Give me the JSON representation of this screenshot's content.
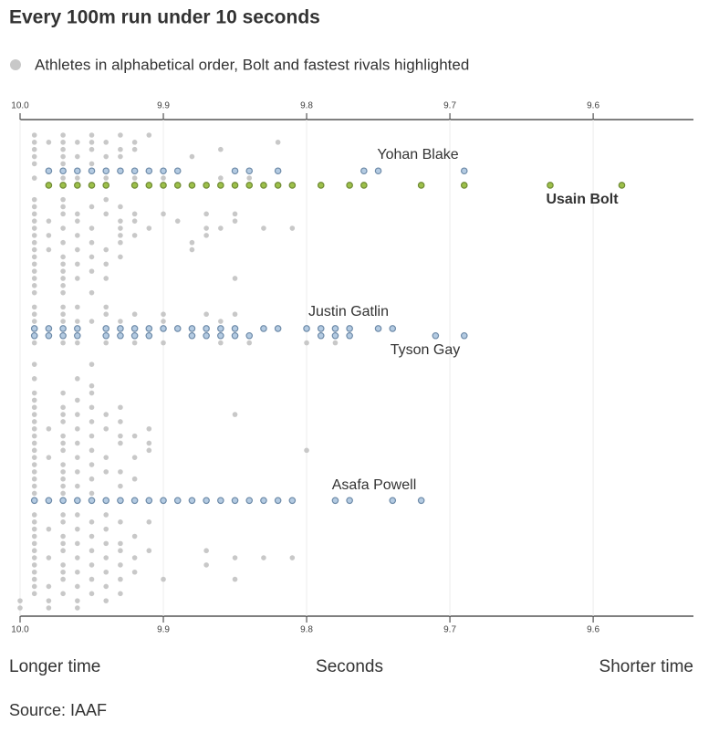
{
  "chart_data": {
    "type": "strip",
    "title": "Every 100m run under 10 seconds",
    "xlabel": "Seconds",
    "left_note": "Longer time",
    "right_note": "Shorter time",
    "source": "Source: IAAF",
    "xlim": [
      10.0,
      9.53
    ],
    "xticks": [
      {
        "value": 10.0,
        "label": "10.0"
      },
      9.9,
      9.8,
      9.7,
      9.6
    ],
    "ylim": [
      0,
      66
    ],
    "grid": true,
    "series": [
      {
        "name": "Athletes in alphabetical order, Bolt and fastest rivals highlighted",
        "color": "#c8c8c8",
        "rows": [
          {
            "row": 0,
            "values": [
              9.99,
              9.97,
              9.95,
              9.93,
              9.91
            ]
          },
          {
            "row": 1,
            "values": [
              9.99,
              9.98,
              9.97,
              9.96,
              9.95,
              9.94,
              9.92,
              9.82
            ]
          },
          {
            "row": 2,
            "values": [
              9.99,
              9.97,
              9.95,
              9.93,
              9.92,
              9.86
            ]
          },
          {
            "row": 3,
            "values": [
              9.99,
              9.97,
              9.96,
              9.94,
              9.93,
              9.88
            ]
          },
          {
            "row": 4,
            "values": [
              9.99,
              9.97,
              9.95
            ]
          },
          {
            "row": 6,
            "values": [
              9.99,
              9.97,
              9.96,
              9.94,
              9.92,
              9.9,
              9.86,
              9.84
            ]
          },
          {
            "row": 9,
            "values": [
              9.99,
              9.97,
              9.94
            ]
          },
          {
            "row": 10,
            "values": [
              9.99,
              9.97,
              9.95,
              9.93
            ]
          },
          {
            "row": 11,
            "values": [
              9.99,
              9.97,
              9.96,
              9.94,
              9.92,
              9.9,
              9.87,
              9.85
            ]
          },
          {
            "row": 12,
            "values": [
              9.99,
              9.98,
              9.96,
              9.93,
              9.92,
              9.89,
              9.85
            ]
          },
          {
            "row": 13,
            "values": [
              9.99,
              9.97,
              9.95,
              9.93,
              9.91,
              9.87,
              9.86,
              9.83,
              9.81
            ]
          },
          {
            "row": 14,
            "values": [
              9.99,
              9.98,
              9.96,
              9.93,
              9.92,
              9.87
            ]
          },
          {
            "row": 15,
            "values": [
              9.99,
              9.97,
              9.95,
              9.93,
              9.88
            ]
          },
          {
            "row": 16,
            "values": [
              9.99,
              9.98,
              9.96,
              9.94,
              9.88
            ]
          },
          {
            "row": 17,
            "values": [
              9.99,
              9.97,
              9.95,
              9.93
            ]
          },
          {
            "row": 18,
            "values": [
              9.99,
              9.97,
              9.96,
              9.94
            ]
          },
          {
            "row": 19,
            "values": [
              9.99,
              9.97,
              9.95
            ]
          },
          {
            "row": 20,
            "values": [
              9.99,
              9.97,
              9.96,
              9.94,
              9.85
            ]
          },
          {
            "row": 21,
            "values": [
              9.99,
              9.97
            ]
          },
          {
            "row": 22,
            "values": [
              9.99,
              9.97,
              9.95
            ]
          },
          {
            "row": 24,
            "values": [
              9.99,
              9.97,
              9.96,
              9.94
            ]
          },
          {
            "row": 25,
            "values": [
              9.99,
              9.97,
              9.94,
              9.92,
              9.9,
              9.87,
              9.85
            ]
          },
          {
            "row": 26,
            "values": [
              9.99,
              9.97,
              9.96,
              9.95,
              9.93,
              9.9,
              9.86
            ]
          },
          {
            "row": 29,
            "values": [
              9.99,
              9.97,
              9.96,
              9.94,
              9.92,
              9.9,
              9.86,
              9.84,
              9.8,
              9.78
            ]
          },
          {
            "row": 32,
            "values": [
              9.99,
              9.95
            ]
          },
          {
            "row": 34,
            "values": [
              9.99,
              9.96
            ]
          },
          {
            "row": 35,
            "values": [
              9.95
            ]
          },
          {
            "row": 36,
            "values": [
              9.99,
              9.97,
              9.95
            ]
          },
          {
            "row": 37,
            "values": [
              9.99,
              9.96
            ]
          },
          {
            "row": 38,
            "values": [
              9.99,
              9.97,
              9.95,
              9.93
            ]
          },
          {
            "row": 39,
            "values": [
              9.99,
              9.97,
              9.96,
              9.94,
              9.85
            ]
          },
          {
            "row": 40,
            "values": [
              9.99,
              9.97,
              9.95,
              9.93
            ]
          },
          {
            "row": 41,
            "values": [
              9.99,
              9.98,
              9.96,
              9.94,
              9.91
            ]
          },
          {
            "row": 42,
            "values": [
              9.99,
              9.97,
              9.95,
              9.93,
              9.92
            ]
          },
          {
            "row": 43,
            "values": [
              9.99,
              9.97,
              9.96,
              9.93,
              9.91
            ]
          },
          {
            "row": 44,
            "values": [
              9.99,
              9.97,
              9.95,
              9.91,
              9.8
            ]
          },
          {
            "row": 45,
            "values": [
              9.99,
              9.98,
              9.96,
              9.94,
              9.92
            ]
          },
          {
            "row": 46,
            "values": [
              9.99,
              9.97,
              9.95
            ]
          },
          {
            "row": 47,
            "values": [
              9.99,
              9.97,
              9.96,
              9.94,
              9.93
            ]
          },
          {
            "row": 48,
            "values": [
              9.99,
              9.97,
              9.95,
              9.92
            ]
          },
          {
            "row": 49,
            "values": [
              9.99,
              9.97,
              9.96,
              9.93
            ]
          },
          {
            "row": 50,
            "values": [
              9.99,
              9.97,
              9.95
            ]
          },
          {
            "row": 53,
            "values": [
              9.99,
              9.97,
              9.96,
              9.94
            ]
          },
          {
            "row": 54,
            "values": [
              9.99,
              9.97,
              9.95,
              9.93,
              9.91
            ]
          },
          {
            "row": 55,
            "values": [
              9.99,
              9.98,
              9.96,
              9.94
            ]
          },
          {
            "row": 56,
            "values": [
              9.99,
              9.97,
              9.95,
              9.92
            ]
          },
          {
            "row": 57,
            "values": [
              9.99,
              9.97,
              9.96,
              9.94,
              9.93
            ]
          },
          {
            "row": 58,
            "values": [
              9.99,
              9.97,
              9.95,
              9.93,
              9.91,
              9.87
            ]
          },
          {
            "row": 59,
            "values": [
              9.99,
              9.98,
              9.96,
              9.94,
              9.92,
              9.85,
              9.83,
              9.81
            ]
          },
          {
            "row": 60,
            "values": [
              9.99,
              9.97,
              9.95,
              9.93,
              9.87
            ]
          },
          {
            "row": 61,
            "values": [
              9.99,
              9.97,
              9.96,
              9.94,
              9.92
            ]
          },
          {
            "row": 62,
            "values": [
              9.99,
              9.97,
              9.95,
              9.93,
              9.9,
              9.85
            ]
          },
          {
            "row": 63,
            "values": [
              9.99,
              9.98,
              9.96,
              9.94
            ]
          },
          {
            "row": 64,
            "values": [
              9.99,
              9.97,
              9.95,
              9.93
            ]
          },
          {
            "row": 65,
            "values": [
              10.0,
              9.98,
              9.96,
              9.94
            ]
          },
          {
            "row": 66,
            "values": [
              10.0,
              9.98,
              9.96
            ]
          }
        ]
      },
      {
        "name": "Yohan Blake",
        "color": "#b4cbe2",
        "row": 5,
        "values": [
          9.98,
          9.97,
          9.96,
          9.95,
          9.94,
          9.93,
          9.92,
          9.91,
          9.9,
          9.89,
          9.85,
          9.84,
          9.82,
          9.76,
          9.75,
          9.69
        ]
      },
      {
        "name": "Usain Bolt",
        "color": "#9dc04a",
        "row": 7,
        "values": [
          9.98,
          9.97,
          9.96,
          9.95,
          9.94,
          9.92,
          9.91,
          9.9,
          9.89,
          9.88,
          9.87,
          9.86,
          9.85,
          9.84,
          9.83,
          9.82,
          9.81,
          9.79,
          9.77,
          9.76,
          9.72,
          9.69,
          9.63,
          9.58
        ]
      },
      {
        "name": "Justin Gatlin",
        "color": "#b4cbe2",
        "row": 27,
        "values": [
          9.99,
          9.98,
          9.97,
          9.96,
          9.94,
          9.93,
          9.92,
          9.91,
          9.9,
          9.89,
          9.88,
          9.87,
          9.86,
          9.85,
          9.83,
          9.82,
          9.8,
          9.79,
          9.78,
          9.77,
          9.75,
          9.74
        ]
      },
      {
        "name": "Tyson Gay",
        "color": "#b4cbe2",
        "row": 28,
        "values": [
          9.99,
          9.98,
          9.97,
          9.96,
          9.94,
          9.93,
          9.92,
          9.91,
          9.88,
          9.87,
          9.86,
          9.85,
          9.84,
          9.79,
          9.78,
          9.77,
          9.71,
          9.69
        ]
      },
      {
        "name": "Asafa Powell",
        "color": "#b4cbe2",
        "row": 51,
        "values": [
          9.99,
          9.98,
          9.97,
          9.96,
          9.95,
          9.94,
          9.93,
          9.92,
          9.91,
          9.9,
          9.89,
          9.88,
          9.87,
          9.86,
          9.85,
          9.84,
          9.83,
          9.82,
          9.81,
          9.78,
          9.77,
          9.74,
          9.72
        ]
      }
    ]
  }
}
